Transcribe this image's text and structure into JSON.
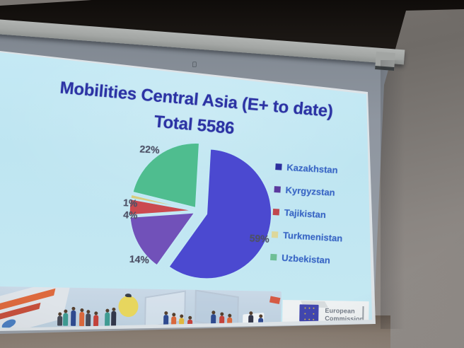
{
  "slide": {
    "title_line1": "Mobilities Central Asia (E+ to date)",
    "title_line2": "Total 5586",
    "title_color": "#2c33a4",
    "background_color": "#c4e9f4",
    "percent_label_color": "#4d5166",
    "legend_text_color": "#3a67c5"
  },
  "chart_data": {
    "type": "pie",
    "title": "Mobilities Central Asia (E+ to date)",
    "subtitle": "Total 5586",
    "total": 5586,
    "unit": "percent",
    "legend_position": "right",
    "slices": [
      {
        "label": "Kazakhstan",
        "percent": 59,
        "color": "#4b49d0",
        "legend_color": "#2d2f9e"
      },
      {
        "label": "Kyrgyzstan",
        "percent": 14,
        "color": "#7151b9",
        "legend_color": "#5b3a9e"
      },
      {
        "label": "Tajikistan",
        "percent": 4,
        "color": "#cb4a50",
        "legend_color": "#c0474e"
      },
      {
        "label": "Turkmenistan",
        "percent": 1,
        "color": "#d8cc7e",
        "legend_color": "#ddd79a"
      },
      {
        "label": "Uzbekistan",
        "percent": 22,
        "color": "#4fbd8f",
        "legend_color": "#6fbf96"
      }
    ]
  },
  "footer": {
    "logo_name": "european-commission-logo",
    "logo_text_line1": "European",
    "logo_text_line2": "Commission"
  }
}
